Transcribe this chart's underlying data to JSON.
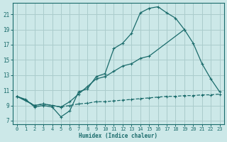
{
  "bg_color": "#cce8e8",
  "grid_color": "#aacccc",
  "line_color": "#1a6b6b",
  "xlabel": "Humidex (Indice chaleur)",
  "xlim": [
    -0.5,
    23.5
  ],
  "ylim": [
    6.5,
    22.5
  ],
  "yticks": [
    7,
    9,
    11,
    13,
    15,
    17,
    19,
    21
  ],
  "xticks": [
    0,
    1,
    2,
    3,
    4,
    5,
    6,
    7,
    8,
    9,
    10,
    11,
    12,
    13,
    14,
    15,
    16,
    17,
    18,
    19,
    20,
    21,
    22,
    23
  ],
  "curve1_x": [
    0,
    1,
    2,
    3,
    4,
    5,
    6,
    7,
    8,
    9,
    10,
    11,
    12,
    13,
    14,
    15,
    16,
    17,
    18,
    19
  ],
  "curve1_y": [
    10.2,
    9.8,
    8.8,
    9.0,
    8.8,
    7.5,
    8.3,
    10.8,
    11.2,
    12.8,
    13.2,
    16.5,
    17.2,
    18.5,
    21.2,
    21.8,
    22.0,
    21.2,
    20.5,
    19.0
  ],
  "curve2_x": [
    0,
    2,
    3,
    5,
    6,
    7,
    8,
    9,
    10,
    11,
    12,
    13,
    14,
    15,
    19,
    20,
    21,
    22,
    23
  ],
  "curve2_y": [
    10.2,
    9.0,
    9.2,
    8.8,
    9.5,
    10.5,
    11.5,
    12.5,
    12.8,
    13.5,
    14.2,
    14.5,
    15.2,
    15.5,
    19.0,
    17.2,
    14.5,
    12.5,
    10.8
  ],
  "curve3_x": [
    0,
    1,
    2,
    3,
    4,
    5,
    6,
    7,
    8,
    9,
    10,
    11,
    12,
    13,
    14,
    15,
    16,
    17,
    18,
    19,
    20,
    21,
    22,
    23
  ],
  "curve3_y": [
    10.2,
    9.7,
    9.0,
    9.2,
    9.0,
    8.8,
    9.0,
    9.2,
    9.3,
    9.5,
    9.5,
    9.6,
    9.7,
    9.8,
    9.9,
    10.0,
    10.1,
    10.2,
    10.2,
    10.3,
    10.3,
    10.4,
    10.4,
    10.5
  ]
}
